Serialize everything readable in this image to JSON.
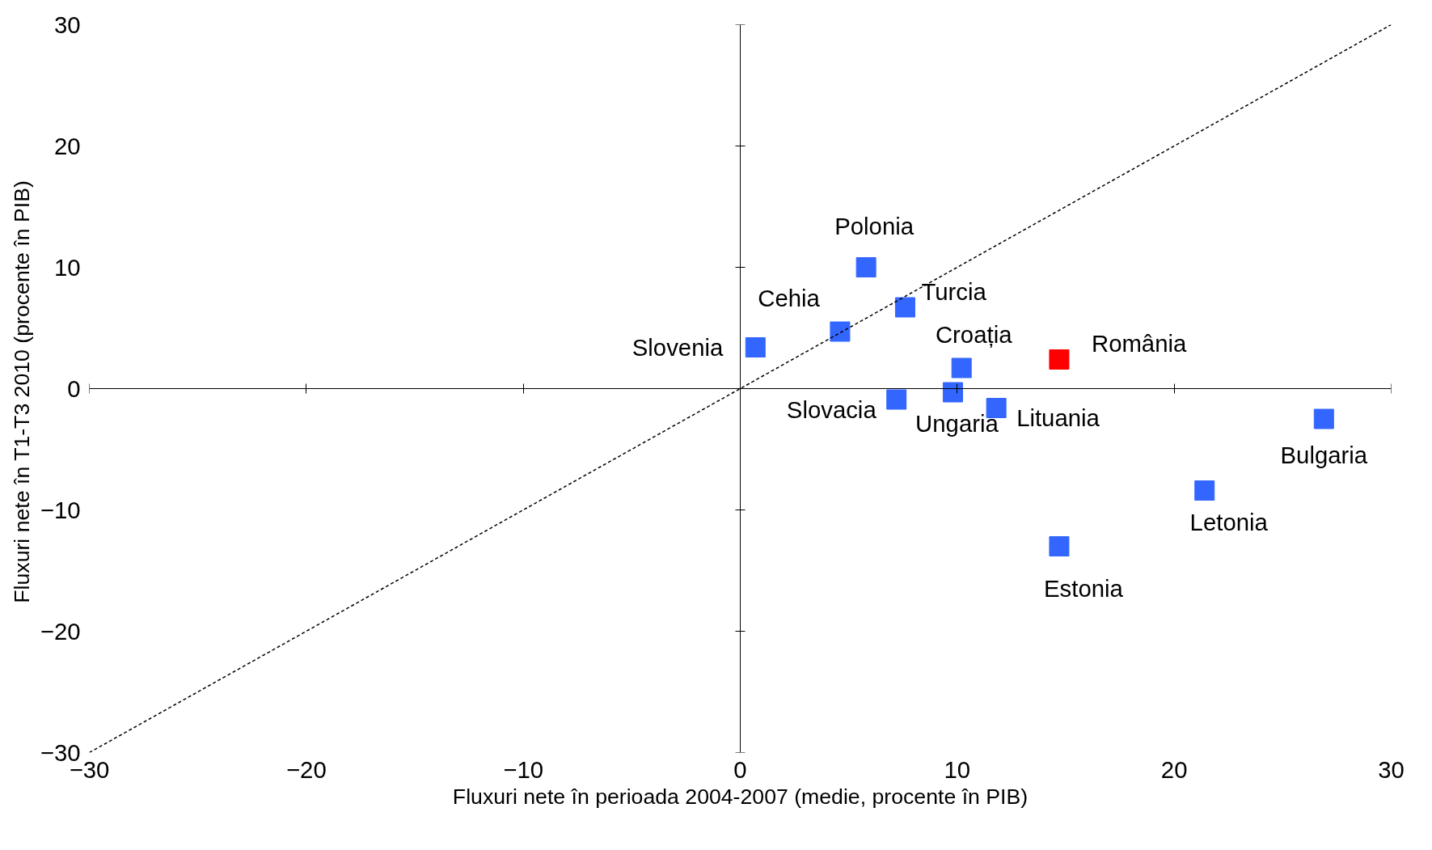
{
  "chart_data": {
    "type": "scatter",
    "xlabel": "Fluxuri nete în perioada 2004-2007 (medie, procente în PIB)",
    "ylabel": "Fluxuri nete în T1-T3  2010 (procente în PIB)",
    "xlim": [
      -30,
      30
    ],
    "ylim": [
      -30,
      30
    ],
    "xticks": [
      -30,
      -20,
      -10,
      0,
      10,
      20,
      30
    ],
    "yticks": [
      -30,
      -20,
      -10,
      0,
      10,
      20,
      30
    ],
    "marker": "square",
    "series": [
      {
        "x": [
          0.7,
          4.6,
          5.8,
          7.6,
          10.2,
          14.7,
          7.2,
          9.8,
          11.8,
          26.9,
          21.4,
          14.7
        ],
        "values": [
          3.4,
          4.7,
          10.0,
          6.7,
          1.7,
          2.4,
          -0.9,
          -0.3,
          -1.6,
          -2.5,
          -8.4,
          -13.0
        ],
        "colors": [
          "#3366ff",
          "#3366ff",
          "#3366ff",
          "#3366ff",
          "#3366ff",
          "#ff0000",
          "#3366ff",
          "#3366ff",
          "#3366ff",
          "#3366ff",
          "#3366ff",
          "#3366ff"
        ]
      },
      {
        "type": "line",
        "x": [
          -30,
          30
        ],
        "values": [
          -30,
          30
        ],
        "color": "#000000",
        "line_style": "dashed",
        "marker": "none"
      }
    ],
    "annotations": [
      {
        "text": "Slovenia",
        "x": 0.7,
        "y": 3.4
      },
      {
        "text": "Cehia",
        "x": 4.6,
        "y": 4.7
      },
      {
        "text": "Polonia",
        "x": 5.8,
        "y": 10.0
      },
      {
        "text": "Turcia",
        "x": 7.6,
        "y": 6.7
      },
      {
        "text": "Croația",
        "x": 10.2,
        "y": 1.7
      },
      {
        "text": "România",
        "x": 14.7,
        "y": 2.4
      },
      {
        "text": "Slovacia",
        "x": 7.2,
        "y": -0.9
      },
      {
        "text": "Ungaria",
        "x": 9.8,
        "y": -0.3
      },
      {
        "text": "Lituania",
        "x": 11.8,
        "y": -1.6
      },
      {
        "text": "Bulgaria",
        "x": 26.9,
        "y": -2.5
      },
      {
        "text": "Letonia",
        "x": 21.4,
        "y": -8.4
      },
      {
        "text": "Estonia",
        "x": 14.7,
        "y": -13.0
      }
    ]
  }
}
